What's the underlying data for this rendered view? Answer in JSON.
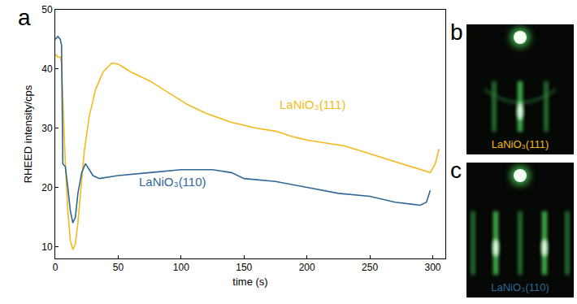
{
  "chart_data": {
    "type": "line",
    "panel": "a",
    "xlabel": "time (s)",
    "ylabel": "RHEED intensity/cps",
    "xlim": [
      0,
      310
    ],
    "ylim": [
      8,
      50
    ],
    "xticks": [
      0,
      50,
      100,
      150,
      200,
      250,
      300
    ],
    "yticks": [
      10,
      20,
      30,
      40,
      50
    ],
    "series": [
      {
        "name": "LaNiO₃(111)",
        "color": "#f5b91c",
        "x": [
          0,
          2,
          4,
          5,
          6,
          8,
          10,
          12,
          14,
          16,
          18,
          20,
          23,
          27,
          32,
          38,
          45,
          50,
          60,
          75,
          90,
          105,
          120,
          140,
          160,
          175,
          190,
          200,
          215,
          230,
          245,
          260,
          275,
          290,
          298,
          302,
          305
        ],
        "values": [
          42.5,
          42,
          42,
          41,
          35,
          24,
          16,
          11,
          9.5,
          10.5,
          14,
          19,
          26,
          32,
          36.5,
          39.5,
          41,
          40.8,
          39.5,
          38,
          36,
          34,
          32.5,
          31,
          30,
          29.5,
          28.5,
          28,
          27.5,
          27,
          26,
          25,
          24,
          23,
          22.5,
          24,
          26.5
        ]
      },
      {
        "name": "LaNiO₃(110)",
        "color": "#2f6796",
        "x": [
          0,
          2,
          4,
          5,
          6,
          8,
          10,
          12,
          14,
          16,
          18,
          21,
          24,
          27,
          30,
          35,
          50,
          75,
          100,
          125,
          140,
          150,
          175,
          200,
          225,
          250,
          270,
          290,
          295,
          298
        ],
        "values": [
          45,
          45.5,
          45,
          44,
          24,
          23.5,
          20,
          16,
          14,
          15,
          19,
          22.5,
          24,
          23,
          22,
          21.5,
          22,
          22.5,
          23,
          23,
          22.5,
          21.5,
          21,
          20,
          19,
          18.5,
          17.5,
          17,
          17.5,
          19.5
        ]
      }
    ]
  },
  "images": [
    {
      "panel": "b",
      "label": "LaNiO₃(111)"
    },
    {
      "panel": "c",
      "label": "LaNiO₃(110)"
    }
  ]
}
